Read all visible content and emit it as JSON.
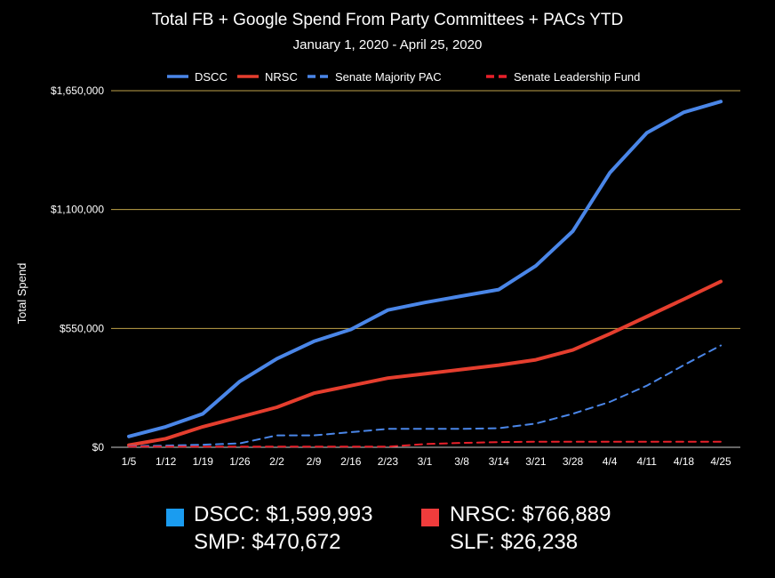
{
  "colors": {
    "background": "#000000",
    "grid": "#bfa24a",
    "dscc": "#4a86e8",
    "nrsc": "#e53e2e",
    "smp": "#4a86e8",
    "slf": "#e8202a",
    "text": "#ffffff",
    "swatch_dscc": "#1a9cf0",
    "swatch_nrsc": "#f03c3c"
  },
  "chart_data": {
    "type": "line",
    "title": "Total FB + Google Spend From Party Committees + PACs YTD",
    "subtitle": "January 1, 2020 - April 25, 2020",
    "ylabel": "Total Spend",
    "xlabel": "",
    "ylim": [
      0,
      1650000
    ],
    "yticks": [
      0,
      550000,
      1100000,
      1650000
    ],
    "ytick_labels": [
      "$0",
      "$550,000",
      "$1,100,000",
      "$1,650,000"
    ],
    "categories": [
      "1/5",
      "1/12",
      "1/19",
      "1/26",
      "2/2",
      "2/9",
      "2/16",
      "2/23",
      "3/1",
      "3/8",
      "3/14",
      "3/21",
      "3/28",
      "4/4",
      "4/11",
      "4/18",
      "4/25"
    ],
    "legend_position": "top",
    "series": [
      {
        "name": "DSCC",
        "style": "solid",
        "color_key": "dscc",
        "values": [
          50000,
          95000,
          155000,
          305000,
          410000,
          490000,
          545000,
          635000,
          670000,
          700000,
          730000,
          840000,
          1000000,
          1270000,
          1455000,
          1550000,
          1600000
        ]
      },
      {
        "name": "NRSC",
        "style": "solid",
        "color_key": "nrsc",
        "values": [
          10000,
          40000,
          95000,
          140000,
          185000,
          250000,
          285000,
          320000,
          340000,
          360000,
          380000,
          405000,
          450000,
          525000,
          605000,
          685000,
          767000
        ]
      },
      {
        "name": "Senate Majority PAC",
        "style": "dashed",
        "color_key": "smp",
        "values": [
          5000,
          8000,
          12000,
          18000,
          55000,
          55000,
          70000,
          85000,
          85000,
          85000,
          88000,
          110000,
          155000,
          210000,
          285000,
          380000,
          471000
        ]
      },
      {
        "name": "Senate Leadership Fund",
        "style": "dashed",
        "color_key": "slf",
        "values": [
          3000,
          3000,
          3000,
          3000,
          3000,
          3000,
          3000,
          3000,
          15000,
          20000,
          24000,
          26000,
          26000,
          26000,
          26000,
          26000,
          26000
        ]
      }
    ]
  },
  "summary": {
    "dscc": "DSCC: $1,599,993",
    "nrsc": "NRSC: $766,889",
    "smp": "SMP: $470,672",
    "slf": "SLF: $26,238"
  }
}
